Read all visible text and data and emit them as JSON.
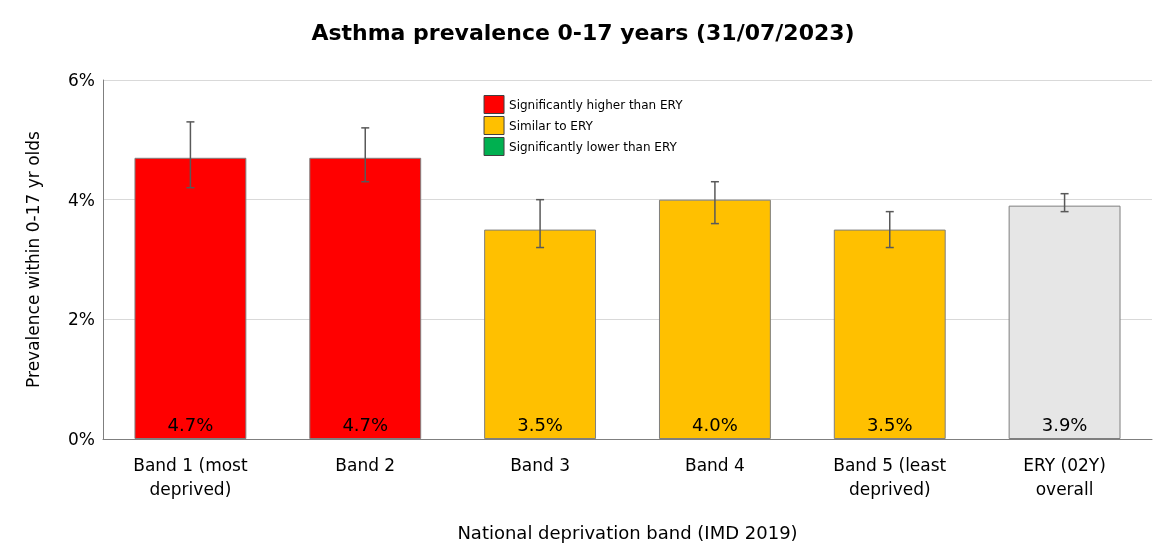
{
  "chart_data": {
    "type": "bar",
    "title": "Asthma prevalence 0-17 years (31/07/2023)",
    "xlabel": "National deprivation band (IMD 2019)",
    "ylabel": "Prevalence within 0-17 yr olds",
    "categories": [
      "Band 1 (most\ndeprived)",
      "Band 2",
      "Band 3",
      "Band 4",
      "Band 5 (least\ndeprived)",
      "ERY (02Y)\noverall"
    ],
    "series": [
      {
        "name": "Significantly higher than ERY",
        "color": "#ff0000",
        "values": [
          4.7,
          4.7,
          null,
          null,
          null,
          null
        ],
        "errors": [
          [
            4.2,
            5.3
          ],
          [
            4.3,
            5.2
          ],
          null,
          null,
          null,
          null
        ],
        "value_labels": [
          "4.7%",
          "4.7%",
          null,
          null,
          null,
          null
        ]
      },
      {
        "name": "Similar to ERY",
        "color": "#ffc000",
        "values": [
          null,
          null,
          3.5,
          4.0,
          3.5,
          null
        ],
        "errors": [
          null,
          null,
          [
            3.2,
            4.0
          ],
          [
            3.6,
            4.3
          ],
          [
            3.2,
            3.8
          ],
          null
        ],
        "value_labels": [
          null,
          null,
          "3.5%",
          "4.0%",
          "3.5%",
          null
        ]
      },
      {
        "name": "Significantly lower than ERY",
        "color": "#00b050",
        "values": [
          null,
          null,
          null,
          null,
          null,
          null
        ]
      },
      {
        "color": "#e6e6e6",
        "values": [
          null,
          null,
          null,
          null,
          null,
          3.9
        ],
        "errors": [
          null,
          null,
          null,
          null,
          null,
          [
            3.8,
            4.1
          ]
        ],
        "value_labels": [
          null,
          null,
          null,
          null,
          null,
          "3.9%"
        ]
      }
    ],
    "ylim": [
      0,
      6
    ],
    "yticks": [
      {
        "value": 0,
        "label": "0%"
      },
      {
        "value": 2,
        "label": "2%"
      },
      {
        "value": 4,
        "label": "4%"
      },
      {
        "value": 6,
        "label": "6%"
      }
    ],
    "grid": "y",
    "legend": "top"
  }
}
